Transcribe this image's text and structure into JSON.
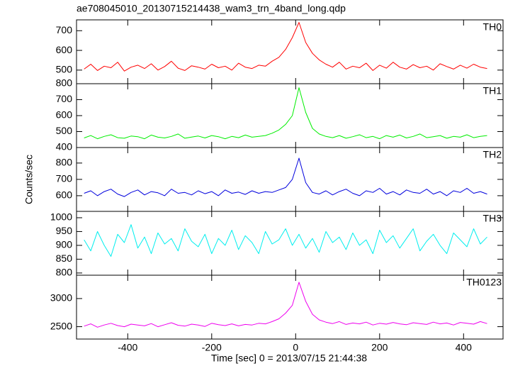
{
  "chart_data": {
    "type": "line",
    "title": "ae708045010_20130715214438_wam3_trn_4band_long.qdp",
    "xlabel": "Time [sec] 0 = 2013/07/15 21:44:38",
    "ylabel": "Counts/sec",
    "xlim": [
      -522,
      494
    ],
    "xticks": [
      -400,
      -200,
      0,
      200,
      400
    ],
    "x": [
      -504,
      -488,
      -472,
      -456,
      -440,
      -424,
      -408,
      -392,
      -376,
      -360,
      -344,
      -328,
      -312,
      -296,
      -280,
      -264,
      -248,
      -232,
      -216,
      -200,
      -184,
      -168,
      -152,
      -136,
      -120,
      -104,
      -88,
      -72,
      -56,
      -40,
      -24,
      -8,
      8,
      24,
      40,
      56,
      72,
      88,
      104,
      120,
      136,
      152,
      168,
      184,
      200,
      216,
      232,
      248,
      264,
      280,
      296,
      312,
      328,
      344,
      360,
      376,
      392,
      408,
      424,
      440,
      456
    ],
    "series": [
      {
        "name": "TH0",
        "color": "#ff0000",
        "ylim": [
          431,
          755
        ],
        "yticks": [
          500,
          600,
          700
        ],
        "values": [
          505,
          530,
          498,
          520,
          512,
          540,
          495,
          515,
          525,
          508,
          532,
          500,
          518,
          545,
          510,
          498,
          522,
          515,
          505,
          530,
          512,
          520,
          500,
          535,
          515,
          508,
          525,
          520,
          545,
          565,
          605,
          665,
          742,
          640,
          585,
          552,
          530,
          515,
          540,
          505,
          520,
          512,
          535,
          498,
          525,
          510,
          540,
          515,
          505,
          528,
          512,
          520,
          500,
          532,
          518,
          505,
          525,
          510,
          530,
          515,
          508
        ]
      },
      {
        "name": "TH1",
        "color": "#00ee00",
        "ylim": [
          400,
          800
        ],
        "yticks": [
          400,
          500,
          600,
          700,
          800
        ],
        "values": [
          460,
          475,
          455,
          470,
          480,
          462,
          458,
          472,
          468,
          455,
          478,
          465,
          460,
          470,
          485,
          458,
          466,
          472,
          460,
          475,
          468,
          455,
          470,
          462,
          478,
          465,
          470,
          475,
          490,
          510,
          545,
          600,
          775,
          620,
          520,
          485,
          470,
          462,
          475,
          458,
          468,
          480,
          462,
          470,
          455,
          475,
          465,
          478,
          460,
          470,
          485,
          462,
          468,
          475,
          458,
          470,
          465,
          480,
          462,
          470,
          475
        ]
      },
      {
        "name": "TH2",
        "color": "#0000dd",
        "ylim": [
          504,
          895
        ],
        "yticks": [
          600,
          700,
          800
        ],
        "values": [
          615,
          630,
          600,
          625,
          640,
          610,
          595,
          620,
          635,
          605,
          625,
          618,
          600,
          640,
          615,
          620,
          605,
          630,
          612,
          625,
          600,
          635,
          615,
          622,
          608,
          630,
          615,
          625,
          620,
          635,
          650,
          700,
          830,
          680,
          620,
          610,
          630,
          605,
          625,
          640,
          615,
          600,
          630,
          620,
          645,
          610,
          625,
          605,
          635,
          620,
          615,
          640,
          610,
          625,
          600,
          630,
          620,
          645,
          615,
          625,
          610
        ]
      },
      {
        "name": "TH3",
        "color": "#00eeee",
        "ylim": [
          792,
          1023
        ],
        "yticks": [
          800,
          850,
          900,
          950,
          1000
        ],
        "values": [
          920,
          880,
          950,
          900,
          860,
          940,
          910,
          975,
          890,
          930,
          870,
          945,
          905,
          925,
          880,
          960,
          915,
          895,
          940,
          870,
          925,
          900,
          955,
          885,
          935,
          910,
          870,
          950,
          905,
          920,
          960,
          900,
          940,
          890,
          925,
          875,
          950,
          910,
          930,
          885,
          945,
          900,
          920,
          870,
          955,
          910,
          935,
          890,
          925,
          960,
          880,
          915,
          940,
          900,
          870,
          945,
          920,
          895,
          960,
          905,
          930
        ]
      },
      {
        "name": "TH0123",
        "color": "#ee00ee",
        "ylim": [
          2280,
          3415
        ],
        "yticks": [
          2500,
          3000
        ],
        "values": [
          2510,
          2550,
          2490,
          2530,
          2560,
          2520,
          2500,
          2545,
          2530,
          2515,
          2555,
          2500,
          2535,
          2570,
          2525,
          2510,
          2545,
          2530,
          2505,
          2560,
          2535,
          2520,
          2550,
          2515,
          2540,
          2530,
          2560,
          2550,
          2590,
          2640,
          2740,
          2880,
          3290,
          2950,
          2720,
          2620,
          2580,
          2555,
          2590,
          2540,
          2565,
          2550,
          2580,
          2530,
          2560,
          2545,
          2575,
          2550,
          2535,
          2570,
          2555,
          2540,
          2580,
          2550,
          2565,
          2530,
          2575,
          2560,
          2545,
          2590,
          2555
        ]
      }
    ]
  }
}
